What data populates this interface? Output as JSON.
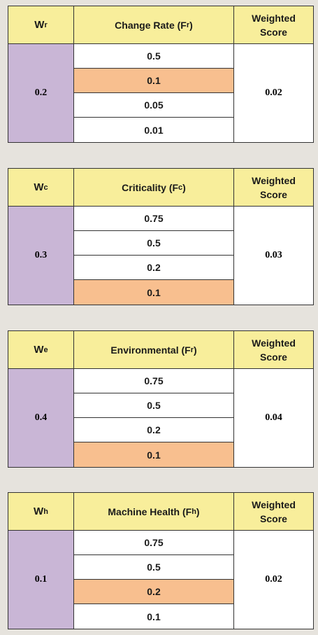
{
  "tables": [
    {
      "weight_symbol": "W",
      "weight_sub": "r",
      "factor_name": "Change Rate (F",
      "factor_sub": "r",
      "factor_close": ")",
      "score_header": "Weighted Score",
      "weight_value": "0.2",
      "options": [
        "0.5",
        "0.1",
        "0.05",
        "0.01"
      ],
      "selected_index": 1,
      "weighted_score": "0.02"
    },
    {
      "weight_symbol": "W",
      "weight_sub": "c",
      "factor_name": "Criticality (F",
      "factor_sub": "c",
      "factor_close": ")",
      "score_header": "Weighted Score",
      "weight_value": "0.3",
      "options": [
        "0.75",
        "0.5",
        "0.2",
        "0.1"
      ],
      "selected_index": 3,
      "weighted_score": "0.03"
    },
    {
      "weight_symbol": "W",
      "weight_sub": "e",
      "factor_name": "Environmental (F",
      "factor_sub": "r",
      "factor_close": ")",
      "score_header": "Weighted Score",
      "weight_value": "0.4",
      "options": [
        "0.75",
        "0.5",
        "0.2",
        "0.1"
      ],
      "selected_index": 3,
      "weighted_score": "0.04"
    },
    {
      "weight_symbol": "W",
      "weight_sub": "h",
      "factor_name": "Machine Health (F",
      "factor_sub": "h",
      "factor_close": ")",
      "score_header": "Weighted Score",
      "weight_value": "0.1",
      "options": [
        "0.75",
        "0.5",
        "0.2",
        "0.1"
      ],
      "selected_index": 2,
      "weighted_score": "0.02"
    }
  ],
  "colors": {
    "header_bg": "#f8ee9b",
    "weight_bg": "#c9b6d6",
    "selected_bg": "#f8bf8f",
    "page_bg": "#e6e3dd"
  }
}
